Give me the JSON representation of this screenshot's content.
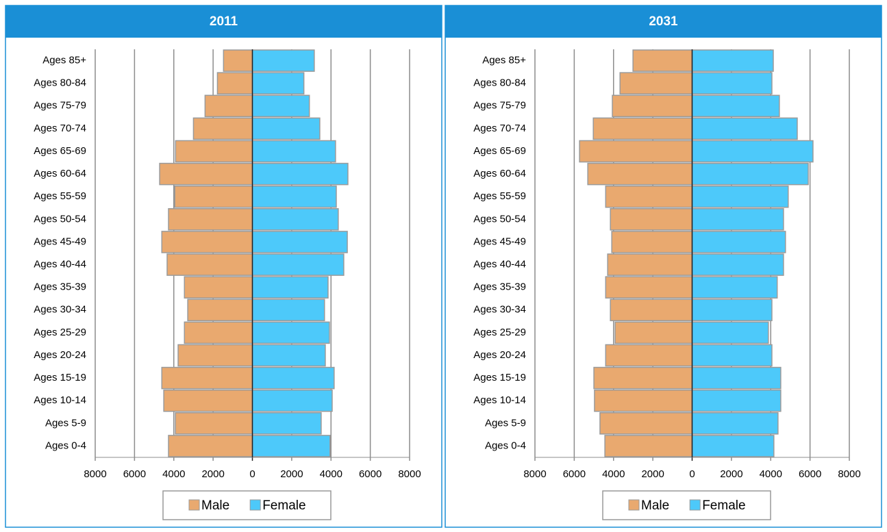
{
  "chart_data": [
    {
      "type": "bar",
      "orientation": "horizontal",
      "title": "2011",
      "categories": [
        "Ages 85+",
        "Ages 80-84",
        "Ages 75-79",
        "Ages 70-74",
        "Ages 65-69",
        "Ages 60-64",
        "Ages 55-59",
        "Ages 50-54",
        "Ages 45-49",
        "Ages 40-44",
        "Ages 35-39",
        "Ages 30-34",
        "Ages 25-29",
        "Ages 20-24",
        "Ages 15-19",
        "Ages 10-14",
        "Ages 5-9",
        "Ages 0-4"
      ],
      "series": [
        {
          "name": "Male",
          "color": "#e9a96f",
          "values": [
            -1470,
            -1780,
            -2410,
            -3000,
            -3910,
            -4720,
            -3950,
            -4270,
            -4610,
            -4340,
            -3460,
            -3290,
            -3460,
            -3780,
            -4610,
            -4510,
            -3920,
            -4270
          ]
        },
        {
          "name": "Female",
          "color": "#4dc9fa",
          "values": [
            3150,
            2620,
            2900,
            3430,
            4230,
            4860,
            4270,
            4370,
            4830,
            4650,
            3850,
            3670,
            3920,
            3710,
            4160,
            4060,
            3500,
            3950
          ]
        }
      ],
      "xlim": [
        -8000,
        8000
      ],
      "xticks": [
        {
          "value": -8000,
          "label": "8000"
        },
        {
          "value": -6000,
          "label": "6000"
        },
        {
          "value": -4000,
          "label": "4000"
        },
        {
          "value": -2000,
          "label": "2000"
        },
        0,
        2000,
        4000,
        6000,
        8000
      ],
      "grid": true
    },
    {
      "type": "bar",
      "orientation": "horizontal",
      "title": "2031",
      "categories": [
        "Ages 85+",
        "Ages 80-84",
        "Ages 75-79",
        "Ages 70-74",
        "Ages 65-69",
        "Ages 60-64",
        "Ages 55-59",
        "Ages 50-54",
        "Ages 45-49",
        "Ages 40-44",
        "Ages 35-39",
        "Ages 30-34",
        "Ages 25-29",
        "Ages 20-24",
        "Ages 15-19",
        "Ages 10-14",
        "Ages 5-9",
        "Ages 0-4"
      ],
      "series": [
        {
          "name": "Male",
          "color": "#e9a96f",
          "values": [
            -3010,
            -3670,
            -4060,
            -5030,
            -5730,
            -5310,
            -4400,
            -4160,
            -4090,
            -4300,
            -4400,
            -4160,
            -3920,
            -4400,
            -5000,
            -4970,
            -4690,
            -4440
          ]
        },
        {
          "name": "Female",
          "color": "#4dc9fa",
          "values": [
            4130,
            4060,
            4440,
            5350,
            6150,
            5910,
            4890,
            4650,
            4750,
            4650,
            4330,
            4060,
            3880,
            4060,
            4510,
            4510,
            4370,
            4160
          ]
        }
      ],
      "xlim": [
        -8000,
        8000
      ],
      "xticks": [
        {
          "value": -8000,
          "label": "8000"
        },
        {
          "value": -6000,
          "label": "6000"
        },
        {
          "value": -4000,
          "label": "4000"
        },
        {
          "value": -2000,
          "label": "2000"
        },
        0,
        2000,
        4000,
        6000,
        8000
      ],
      "grid": true
    }
  ]
}
